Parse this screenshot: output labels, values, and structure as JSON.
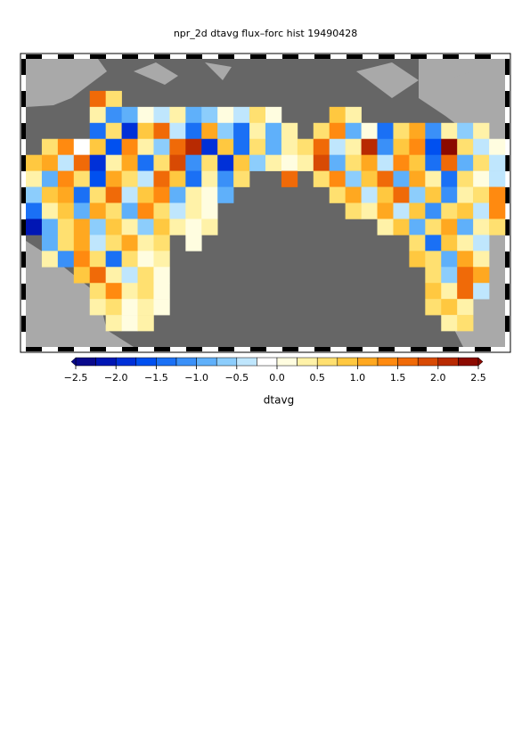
{
  "chart_data": {
    "type": "map",
    "title": "npr_2d dtavg flux–forc hist 19490428",
    "grid": [
      [
        null,
        null,
        null,
        null,
        null,
        null,
        null,
        null,
        null,
        null,
        null,
        null,
        null,
        null,
        null,
        null,
        null,
        null,
        null,
        null,
        null,
        null,
        null,
        null,
        null,
        null,
        null,
        null,
        null,
        null
      ],
      [
        null,
        null,
        null,
        null,
        null,
        null,
        null,
        null,
        null,
        null,
        null,
        null,
        null,
        null,
        null,
        null,
        null,
        null,
        null,
        null,
        null,
        null,
        null,
        null,
        null,
        null,
        null,
        null,
        null,
        null
      ],
      [
        null,
        null,
        null,
        null,
        1.5,
        0.5,
        null,
        null,
        null,
        null,
        null,
        null,
        null,
        null,
        null,
        null,
        null,
        null,
        null,
        null,
        null,
        null,
        null,
        null,
        null,
        null,
        null,
        null,
        null,
        null
      ],
      [
        null,
        null,
        null,
        null,
        0.3,
        -1.2,
        -0.8,
        0.2,
        -0.5,
        0.4,
        -1.0,
        -0.6,
        0.1,
        -0.4,
        0.6,
        0.2,
        null,
        null,
        null,
        0.8,
        0.3,
        null,
        null,
        null,
        null,
        null,
        null,
        null,
        null,
        null
      ],
      [
        null,
        null,
        null,
        null,
        -1.4,
        0.6,
        -1.8,
        0.9,
        1.6,
        -0.3,
        -1.5,
        1.2,
        -0.7,
        -1.3,
        0.4,
        -0.9,
        0.3,
        null,
        0.5,
        1.4,
        -0.8,
        0.2,
        -1.5,
        0.7,
        1.1,
        -1.2,
        0.4,
        -0.6,
        0.3,
        null
      ],
      [
        null,
        0.6,
        1.3,
        -0.2,
        0.9,
        -1.6,
        1.4,
        0.3,
        -0.7,
        1.5,
        2.2,
        -1.8,
        0.8,
        -1.4,
        0.5,
        -0.9,
        0.4,
        0.7,
        1.6,
        -0.5,
        0.4,
        2.1,
        -1.2,
        0.9,
        1.3,
        -1.6,
        2.4,
        0.6,
        -0.4,
        0.2
      ],
      [
        0.8,
        1.2,
        -0.3,
        1.5,
        -1.9,
        0.4,
        1.1,
        -1.3,
        0.7,
        1.8,
        -1.1,
        0.5,
        -2.0,
        0.9,
        -0.6,
        0.3,
        0.2,
        0.4,
        1.9,
        -0.8,
        0.6,
        1.2,
        -0.4,
        1.4,
        0.8,
        -1.3,
        1.6,
        -0.9,
        0.5,
        -0.3
      ],
      [
        0.3,
        -0.9,
        1.4,
        0.6,
        -1.7,
        1.2,
        0.5,
        -0.4,
        1.6,
        0.9,
        -1.5,
        0.3,
        -1.2,
        0.6,
        null,
        null,
        1.5,
        null,
        0.6,
        1.3,
        -0.6,
        0.9,
        1.7,
        -0.8,
        1.1,
        0.4,
        -1.4,
        0.7,
        0.2,
        -0.5
      ],
      [
        -0.6,
        0.9,
        1.1,
        -1.3,
        0.7,
        1.5,
        -0.5,
        0.8,
        1.3,
        -0.9,
        0.4,
        0.2,
        -0.8,
        null,
        null,
        null,
        null,
        null,
        null,
        0.5,
        1.2,
        -0.3,
        0.8,
        1.6,
        -0.6,
        0.9,
        -1.1,
        0.4,
        0.7,
        1.4
      ],
      [
        -1.5,
        0.4,
        0.8,
        -0.9,
        1.2,
        0.6,
        -1.0,
        1.3,
        0.5,
        -0.4,
        0.3,
        0.1,
        null,
        null,
        null,
        null,
        null,
        null,
        null,
        null,
        0.6,
        0.3,
        1.1,
        -0.5,
        0.8,
        -1.2,
        0.5,
        0.9,
        -0.4,
        1.3
      ],
      [
        -2.1,
        -0.8,
        0.6,
        1.0,
        -0.6,
        0.9,
        0.3,
        -0.7,
        0.8,
        0.4,
        0.2,
        0.3,
        null,
        null,
        null,
        null,
        null,
        null,
        null,
        null,
        null,
        null,
        0.4,
        0.9,
        -1.0,
        0.6,
        1.1,
        -0.8,
        0.3,
        0.5
      ],
      [
        null,
        -0.9,
        0.5,
        1.2,
        -0.4,
        0.7,
        1.0,
        0.3,
        0.5,
        null,
        0.2,
        null,
        null,
        null,
        null,
        null,
        null,
        null,
        null,
        null,
        null,
        null,
        null,
        null,
        0.6,
        -1.3,
        0.8,
        0.4,
        -0.5,
        null
      ],
      [
        null,
        0.3,
        -1.1,
        1.4,
        0.6,
        -1.4,
        0.5,
        0.2,
        0.4,
        null,
        null,
        null,
        null,
        null,
        null,
        null,
        null,
        null,
        null,
        null,
        null,
        null,
        null,
        null,
        0.9,
        0.5,
        -1.0,
        1.2,
        0.3,
        null
      ],
      [
        null,
        null,
        null,
        0.8,
        1.7,
        0.4,
        -0.3,
        0.5,
        0.2,
        null,
        null,
        null,
        null,
        null,
        null,
        null,
        null,
        null,
        null,
        null,
        null,
        null,
        null,
        null,
        null,
        0.6,
        -0.7,
        1.5,
        1.2,
        null
      ],
      [
        null,
        null,
        null,
        null,
        0.5,
        1.3,
        0.3,
        0.6,
        0.2,
        null,
        null,
        null,
        null,
        null,
        null,
        null,
        null,
        null,
        null,
        null,
        null,
        null,
        null,
        null,
        null,
        0.8,
        0.4,
        1.6,
        -0.3,
        null
      ],
      [
        null,
        null,
        null,
        null,
        0.3,
        0.6,
        0.2,
        0.4,
        0.1,
        null,
        null,
        null,
        null,
        null,
        null,
        null,
        null,
        null,
        null,
        null,
        null,
        null,
        null,
        null,
        null,
        0.5,
        0.9,
        0.3,
        null,
        null
      ],
      [
        null,
        null,
        null,
        null,
        null,
        0.4,
        0.2,
        0.3,
        null,
        null,
        null,
        null,
        null,
        null,
        null,
        null,
        null,
        null,
        null,
        null,
        null,
        null,
        null,
        null,
        null,
        null,
        0.4,
        0.6,
        null,
        null
      ],
      [
        null,
        null,
        null,
        null,
        null,
        null,
        null,
        null,
        null,
        null,
        null,
        null,
        null,
        null,
        null,
        null,
        null,
        null,
        null,
        null,
        null,
        null,
        null,
        null,
        null,
        null,
        null,
        null,
        null,
        null
      ]
    ],
    "colorbar": {
      "label": "dtavg",
      "vlim": [
        -2.5,
        2.5
      ],
      "ticks": [
        {
          "value": -2.5,
          "label": "−2.5"
        },
        {
          "value": -2.0,
          "label": "−2.0"
        },
        {
          "value": -1.5,
          "label": "−1.5"
        },
        {
          "value": -1.0,
          "label": "−1.0"
        },
        {
          "value": -0.5,
          "label": "−0.5"
        },
        {
          "value": 0.0,
          "label": "0.0"
        },
        {
          "value": 0.5,
          "label": "0.5"
        },
        {
          "value": 1.0,
          "label": "1.0"
        },
        {
          "value": 1.5,
          "label": "1.5"
        },
        {
          "value": 2.0,
          "label": "2.0"
        },
        {
          "value": 2.5,
          "label": "2.5"
        }
      ],
      "colors": [
        "#0a0a8c",
        "#0016b4",
        "#0030d8",
        "#0050f0",
        "#1a70f5",
        "#3a90f8",
        "#5fb0fa",
        "#8ccdfc",
        "#bfe6fd",
        "#ffffff",
        "#fffde0",
        "#fff2a8",
        "#ffe070",
        "#ffc840",
        "#ffa820",
        "#ff8a10",
        "#f06a08",
        "#d84a04",
        "#b82a02",
        "#8c0a00"
      ]
    }
  }
}
